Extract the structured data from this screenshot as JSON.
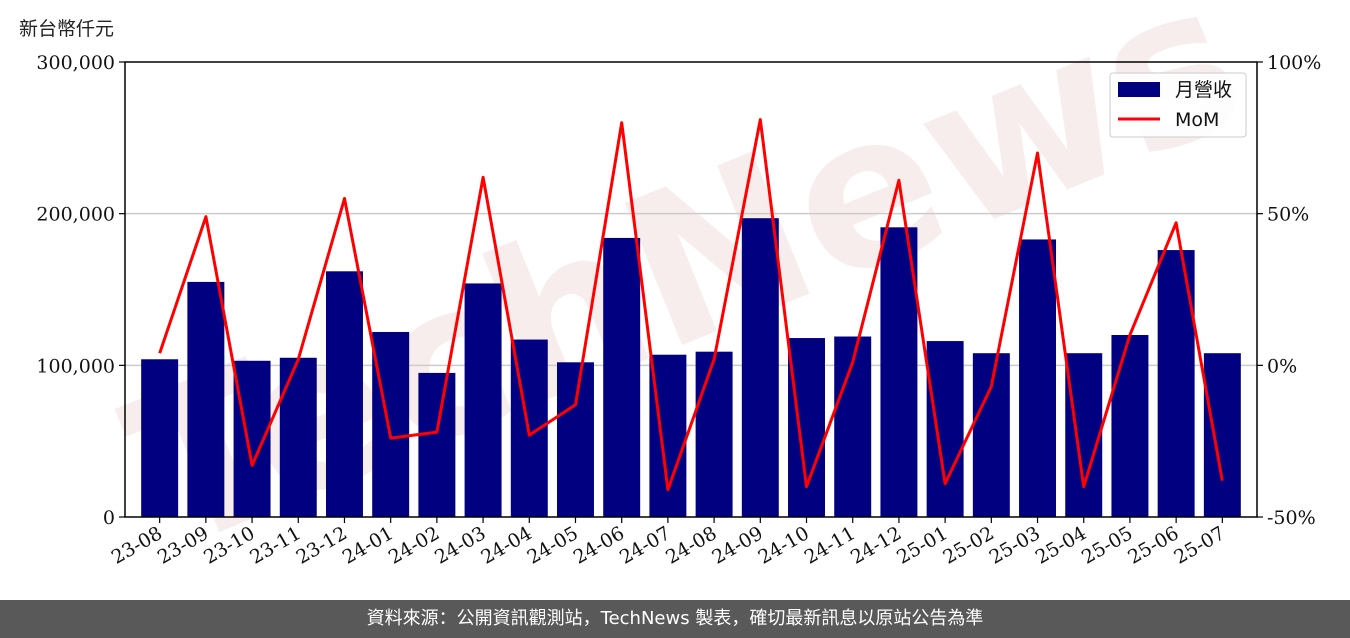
{
  "unit_label": "新台幣仟元",
  "footer_text": "資料來源：公開資訊觀測站，TechNews 製表，確切最新訊息以原站公告為準",
  "colors": {
    "bar": "#000080",
    "line": "#ff0000",
    "grid": "#cccccc",
    "footer_bg": "#595959"
  },
  "chart_data": {
    "type": "bar",
    "categories": [
      "23-08",
      "23-09",
      "23-10",
      "23-11",
      "23-12",
      "24-01",
      "24-02",
      "24-03",
      "24-04",
      "24-05",
      "24-06",
      "24-07",
      "24-08",
      "24-09",
      "24-10",
      "24-11",
      "24-12",
      "25-01",
      "25-02",
      "25-03",
      "25-04",
      "25-05",
      "25-06",
      "25-07"
    ],
    "series": [
      {
        "name": "月營收",
        "type": "bar",
        "axis": "left",
        "values": [
          104000,
          155000,
          103000,
          105000,
          162000,
          122000,
          95000,
          154000,
          117000,
          102000,
          184000,
          107000,
          109000,
          197000,
          118000,
          119000,
          191000,
          116000,
          108000,
          183000,
          108000,
          120000,
          176000,
          108000
        ]
      },
      {
        "name": "MoM",
        "type": "line",
        "axis": "right",
        "values": [
          4,
          49,
          -33,
          2,
          55,
          -24,
          -22,
          62,
          -23,
          -13,
          80,
          -41,
          2,
          81,
          -40,
          1,
          61,
          -39,
          -7,
          70,
          -40,
          10,
          47,
          -38
        ]
      }
    ],
    "y_left": {
      "range": [
        0,
        300000
      ],
      "ticks": [
        0,
        100000,
        200000,
        300000
      ],
      "tick_labels": [
        "0",
        "100,000",
        "200,000",
        "300,000"
      ]
    },
    "y_right": {
      "range": [
        -50,
        100
      ],
      "ticks": [
        -50,
        0,
        50,
        100
      ],
      "tick_labels": [
        "-50%",
        "0%",
        "50%",
        "100%"
      ]
    },
    "grid": true,
    "legend": "top-right",
    "watermark": "TechNews"
  }
}
